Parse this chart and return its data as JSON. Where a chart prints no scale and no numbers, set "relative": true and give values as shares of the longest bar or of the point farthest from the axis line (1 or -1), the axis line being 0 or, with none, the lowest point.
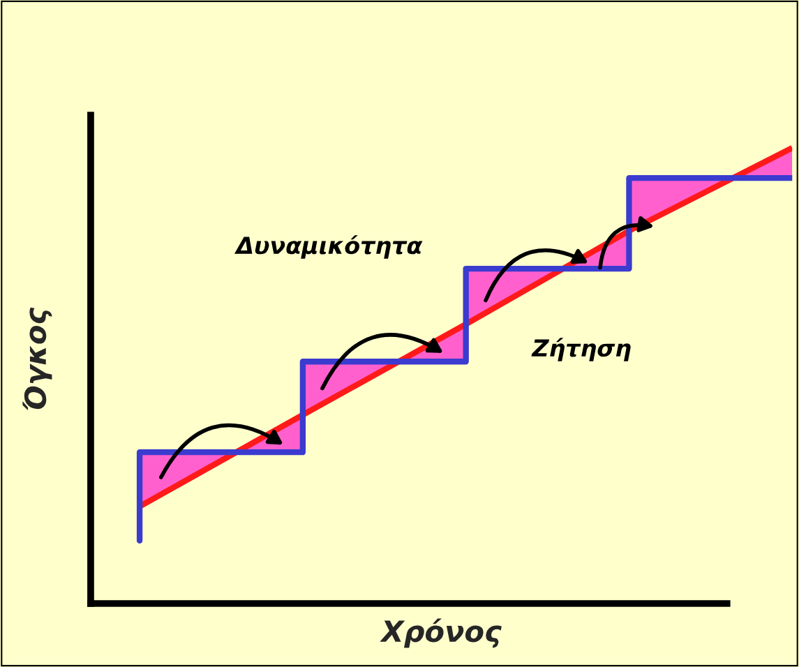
{
  "chart_data": {
    "type": "step",
    "relative": true,
    "xlabel": "Χρόνος",
    "ylabel": "Όγκος",
    "categories": [
      null,
      null,
      null,
      null,
      null
    ],
    "series": [
      {
        "name": "Δυναμικότητα",
        "color": "#3b3bd0",
        "values": [
          0.138,
          0.332,
          0.531,
          0.735,
          0.934
        ]
      },
      {
        "name": "Ζήτηση",
        "type": "line",
        "color": "#ff1a1a",
        "values": [
          0.213,
          0.414,
          0.613,
          0.818,
          1.0
        ]
      }
    ]
  }
}
